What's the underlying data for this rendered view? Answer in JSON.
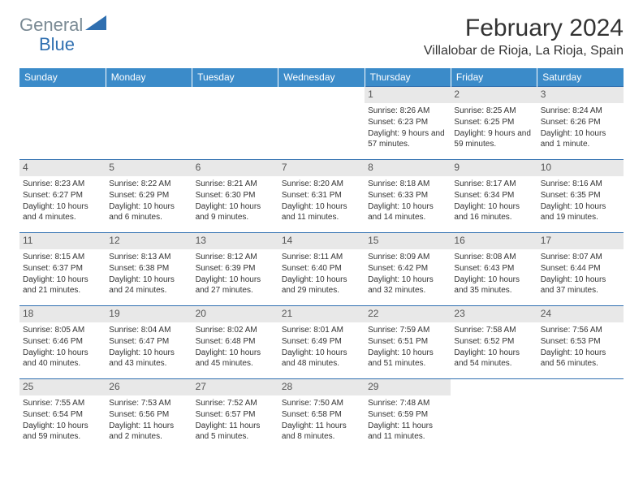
{
  "brand": {
    "part1": "General",
    "part2": "Blue"
  },
  "title": "February 2024",
  "location": "Villalobar de Rioja, La Rioja, Spain",
  "weekdays": [
    "Sunday",
    "Monday",
    "Tuesday",
    "Wednesday",
    "Thursday",
    "Friday",
    "Saturday"
  ],
  "colors": {
    "header_bg": "#3b8bc9",
    "rule": "#2f6fb0",
    "daynum_bg": "#e8e8e8",
    "logo_general": "#7a8a94",
    "logo_blue": "#2f6fb0"
  },
  "first_day_index": 4,
  "days": [
    {
      "n": 1,
      "sunrise": "8:26 AM",
      "sunset": "6:23 PM",
      "daylight": "9 hours and 57 minutes."
    },
    {
      "n": 2,
      "sunrise": "8:25 AM",
      "sunset": "6:25 PM",
      "daylight": "9 hours and 59 minutes."
    },
    {
      "n": 3,
      "sunrise": "8:24 AM",
      "sunset": "6:26 PM",
      "daylight": "10 hours and 1 minute."
    },
    {
      "n": 4,
      "sunrise": "8:23 AM",
      "sunset": "6:27 PM",
      "daylight": "10 hours and 4 minutes."
    },
    {
      "n": 5,
      "sunrise": "8:22 AM",
      "sunset": "6:29 PM",
      "daylight": "10 hours and 6 minutes."
    },
    {
      "n": 6,
      "sunrise": "8:21 AM",
      "sunset": "6:30 PM",
      "daylight": "10 hours and 9 minutes."
    },
    {
      "n": 7,
      "sunrise": "8:20 AM",
      "sunset": "6:31 PM",
      "daylight": "10 hours and 11 minutes."
    },
    {
      "n": 8,
      "sunrise": "8:18 AM",
      "sunset": "6:33 PM",
      "daylight": "10 hours and 14 minutes."
    },
    {
      "n": 9,
      "sunrise": "8:17 AM",
      "sunset": "6:34 PM",
      "daylight": "10 hours and 16 minutes."
    },
    {
      "n": 10,
      "sunrise": "8:16 AM",
      "sunset": "6:35 PM",
      "daylight": "10 hours and 19 minutes."
    },
    {
      "n": 11,
      "sunrise": "8:15 AM",
      "sunset": "6:37 PM",
      "daylight": "10 hours and 21 minutes."
    },
    {
      "n": 12,
      "sunrise": "8:13 AM",
      "sunset": "6:38 PM",
      "daylight": "10 hours and 24 minutes."
    },
    {
      "n": 13,
      "sunrise": "8:12 AM",
      "sunset": "6:39 PM",
      "daylight": "10 hours and 27 minutes."
    },
    {
      "n": 14,
      "sunrise": "8:11 AM",
      "sunset": "6:40 PM",
      "daylight": "10 hours and 29 minutes."
    },
    {
      "n": 15,
      "sunrise": "8:09 AM",
      "sunset": "6:42 PM",
      "daylight": "10 hours and 32 minutes."
    },
    {
      "n": 16,
      "sunrise": "8:08 AM",
      "sunset": "6:43 PM",
      "daylight": "10 hours and 35 minutes."
    },
    {
      "n": 17,
      "sunrise": "8:07 AM",
      "sunset": "6:44 PM",
      "daylight": "10 hours and 37 minutes."
    },
    {
      "n": 18,
      "sunrise": "8:05 AM",
      "sunset": "6:46 PM",
      "daylight": "10 hours and 40 minutes."
    },
    {
      "n": 19,
      "sunrise": "8:04 AM",
      "sunset": "6:47 PM",
      "daylight": "10 hours and 43 minutes."
    },
    {
      "n": 20,
      "sunrise": "8:02 AM",
      "sunset": "6:48 PM",
      "daylight": "10 hours and 45 minutes."
    },
    {
      "n": 21,
      "sunrise": "8:01 AM",
      "sunset": "6:49 PM",
      "daylight": "10 hours and 48 minutes."
    },
    {
      "n": 22,
      "sunrise": "7:59 AM",
      "sunset": "6:51 PM",
      "daylight": "10 hours and 51 minutes."
    },
    {
      "n": 23,
      "sunrise": "7:58 AM",
      "sunset": "6:52 PM",
      "daylight": "10 hours and 54 minutes."
    },
    {
      "n": 24,
      "sunrise": "7:56 AM",
      "sunset": "6:53 PM",
      "daylight": "10 hours and 56 minutes."
    },
    {
      "n": 25,
      "sunrise": "7:55 AM",
      "sunset": "6:54 PM",
      "daylight": "10 hours and 59 minutes."
    },
    {
      "n": 26,
      "sunrise": "7:53 AM",
      "sunset": "6:56 PM",
      "daylight": "11 hours and 2 minutes."
    },
    {
      "n": 27,
      "sunrise": "7:52 AM",
      "sunset": "6:57 PM",
      "daylight": "11 hours and 5 minutes."
    },
    {
      "n": 28,
      "sunrise": "7:50 AM",
      "sunset": "6:58 PM",
      "daylight": "11 hours and 8 minutes."
    },
    {
      "n": 29,
      "sunrise": "7:48 AM",
      "sunset": "6:59 PM",
      "daylight": "11 hours and 11 minutes."
    }
  ],
  "labels": {
    "sunrise": "Sunrise:",
    "sunset": "Sunset:",
    "daylight": "Daylight:"
  }
}
